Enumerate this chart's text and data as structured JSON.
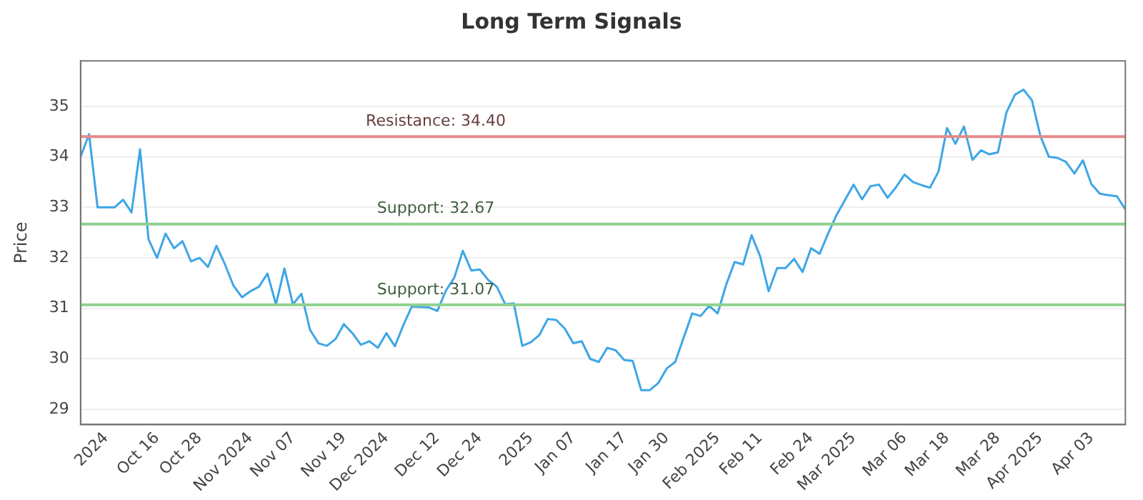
{
  "chart_data": {
    "type": "line",
    "title": "Long Term Signals",
    "ylabel": "Price",
    "categories": [
      null,
      null,
      null,
      "2024",
      null,
      null,
      null,
      null,
      null,
      "Oct 16",
      null,
      null,
      null,
      null,
      "Oct 28",
      null,
      null,
      null,
      null,
      null,
      "Nov 2024",
      null,
      null,
      null,
      null,
      "Nov 07",
      null,
      null,
      null,
      null,
      null,
      "Nov 19",
      null,
      null,
      null,
      null,
      "Dec 2024",
      null,
      null,
      null,
      null,
      null,
      "Dec 12",
      null,
      null,
      null,
      null,
      "Dec 24",
      null,
      null,
      null,
      null,
      null,
      "2025",
      null,
      null,
      null,
      null,
      "Jan 07",
      null,
      null,
      null,
      null,
      null,
      "Jan 17",
      null,
      null,
      null,
      null,
      "Jan 30",
      null,
      null,
      null,
      null,
      null,
      "Feb 2025",
      null,
      null,
      null,
      null,
      "Feb 11",
      null,
      null,
      null,
      null,
      null,
      "Feb 24",
      null,
      null,
      null,
      null,
      "Mar 2025",
      null,
      null,
      null,
      null,
      null,
      "Mar 06",
      null,
      null,
      null,
      null,
      "Mar 18",
      null,
      null,
      null,
      null,
      null,
      "Mar 28",
      null,
      null,
      null,
      null,
      "Apr 2025",
      null,
      null,
      null,
      null,
      null,
      "Apr 03",
      null,
      null,
      null,
      null
    ],
    "series": [
      {
        "color": "#3ea6e6",
        "values": [
          34.0,
          34.45,
          33.0,
          33.0,
          33.0,
          33.15,
          32.9,
          34.15,
          32.37,
          32.0,
          32.48,
          32.19,
          32.33,
          31.93,
          32.0,
          31.82,
          32.24,
          31.87,
          31.45,
          31.22,
          31.34,
          31.43,
          31.69,
          31.08,
          31.79,
          31.08,
          31.29,
          30.58,
          30.31,
          30.26,
          30.39,
          30.69,
          30.51,
          30.28,
          30.35,
          30.22,
          30.51,
          30.25,
          30.67,
          31.04,
          31.03,
          31.02,
          30.95,
          31.35,
          31.61,
          32.14,
          31.75,
          31.77,
          31.56,
          31.43,
          31.08,
          31.1,
          30.26,
          30.33,
          30.47,
          30.79,
          30.77,
          30.6,
          30.31,
          30.35,
          30.0,
          29.94,
          30.22,
          30.17,
          29.98,
          29.96,
          29.38,
          29.38,
          29.52,
          29.81,
          29.94,
          30.42,
          30.9,
          30.85,
          31.05,
          30.9,
          31.47,
          31.92,
          31.87,
          32.45,
          32.03,
          31.34,
          31.8,
          31.8,
          31.98,
          31.72,
          32.19,
          32.08,
          32.48,
          32.85,
          33.15,
          33.45,
          33.16,
          33.42,
          33.45,
          33.19,
          33.4,
          33.65,
          33.5,
          33.44,
          33.39,
          33.71,
          34.57,
          34.26,
          34.6,
          33.94,
          34.13,
          34.05,
          34.09,
          34.88,
          35.23,
          35.33,
          35.12,
          34.41,
          34.0,
          33.98,
          33.9,
          33.67,
          33.93,
          33.46,
          33.27,
          33.24,
          33.22,
          32.96
        ]
      }
    ],
    "ylim": [
      28.7,
      35.9
    ],
    "yticks": [
      29,
      30,
      31,
      32,
      33,
      34,
      35
    ],
    "grid": "y",
    "legend": false,
    "marker": "none",
    "line_style": "solid",
    "ref_lines": [
      {
        "axis": "y",
        "value": 34.4,
        "label": "Resistance: 34.40",
        "color": "#e88a8a"
      },
      {
        "axis": "y",
        "value": 32.67,
        "label": "Support: 32.67",
        "color": "#8fd08f"
      },
      {
        "axis": "y",
        "value": 31.07,
        "label": "Support: 31.07",
        "color": "#8fd08f"
      }
    ]
  }
}
